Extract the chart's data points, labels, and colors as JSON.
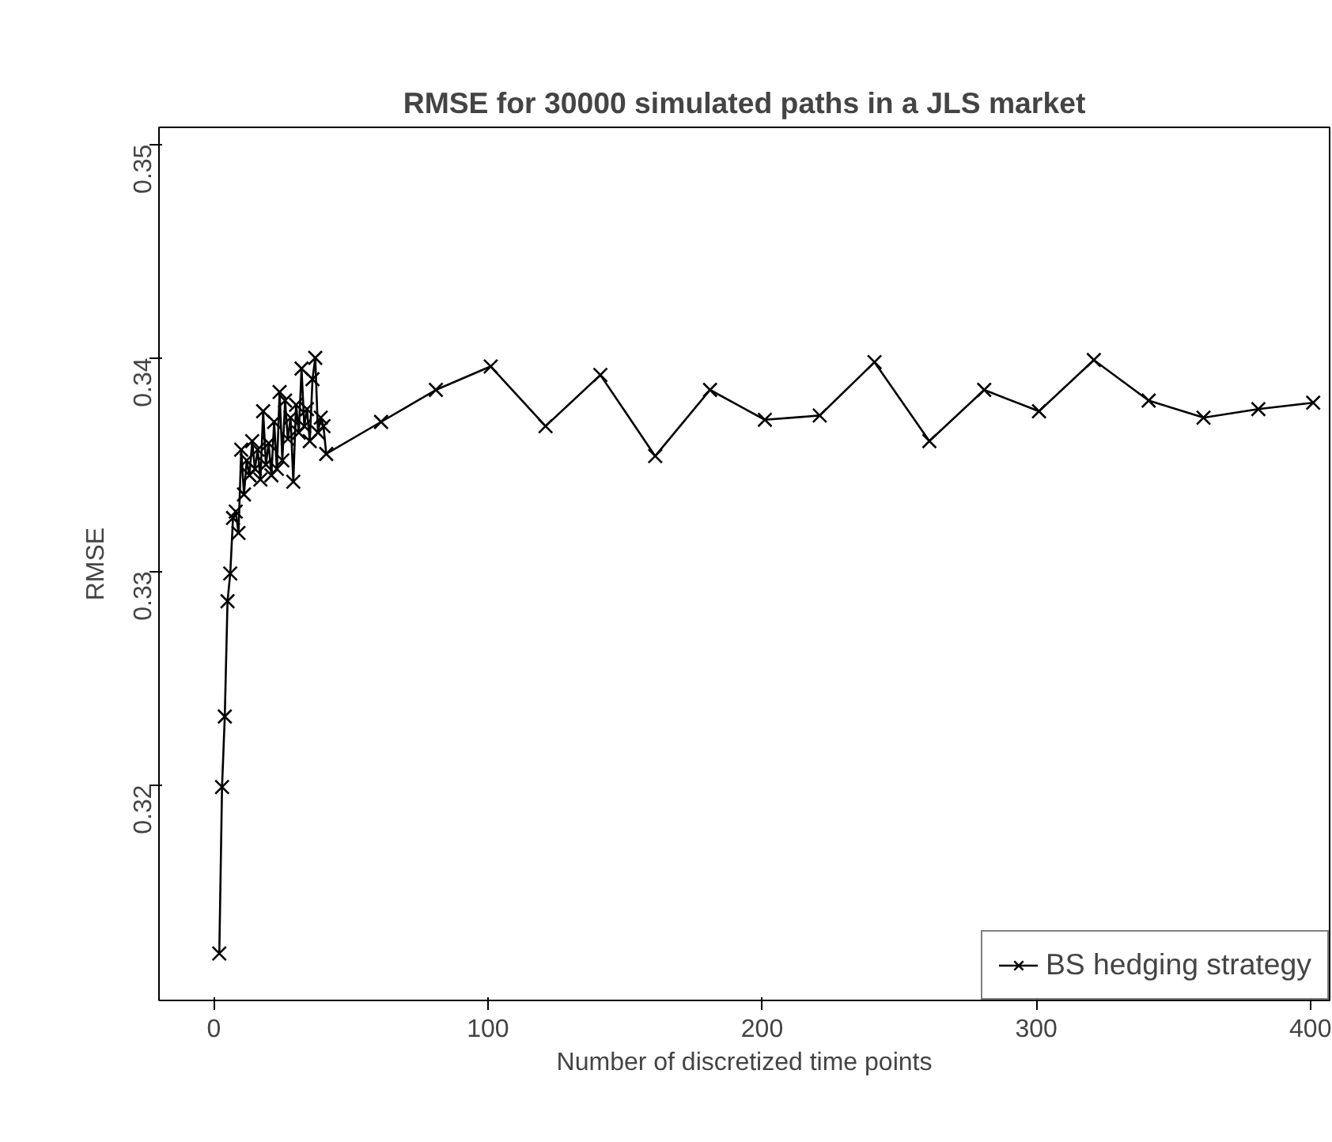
{
  "chart_data": {
    "type": "line",
    "title": "RMSE for 30000 simulated paths in a JLS market",
    "xlabel": "Number of discretized time points",
    "ylabel": "RMSE",
    "x": [
      2,
      3,
      4,
      5,
      6,
      7,
      8,
      9,
      10,
      11,
      12,
      13,
      14,
      15,
      16,
      17,
      18,
      19,
      20,
      21,
      22,
      23,
      24,
      25,
      26,
      27,
      28,
      29,
      30,
      31,
      32,
      33,
      34,
      35,
      36,
      37,
      38,
      39,
      40,
      41,
      61,
      81,
      101,
      121,
      141,
      161,
      181,
      201,
      221,
      241,
      261,
      281,
      301,
      321,
      341,
      361,
      381,
      401
    ],
    "series": [
      {
        "name": "BS hedging strategy",
        "color": "#000000",
        "values": [
          0.3121,
          0.3199,
          0.3232,
          0.3286,
          0.3299,
          0.3325,
          0.3328,
          0.3318,
          0.3357,
          0.3336,
          0.3352,
          0.3345,
          0.3361,
          0.3348,
          0.3357,
          0.3343,
          0.3375,
          0.335,
          0.336,
          0.3345,
          0.337,
          0.3348,
          0.3384,
          0.3352,
          0.338,
          0.3362,
          0.3372,
          0.3342,
          0.3378,
          0.3365,
          0.3395,
          0.3368,
          0.3376,
          0.3361,
          0.339,
          0.34,
          0.3365,
          0.3372,
          0.3368,
          0.3355,
          0.337,
          0.3385,
          0.3396,
          0.3368,
          0.3392,
          0.3354,
          0.3385,
          0.3371,
          0.3373,
          0.3398,
          0.3361,
          0.3385,
          0.3375,
          0.3399,
          0.338,
          0.3372,
          0.3376,
          0.3379
        ]
      }
    ],
    "xlim": [
      -20,
      407
    ],
    "ylim": [
      0.3099,
      0.3508
    ],
    "xticks": [
      0,
      100,
      200,
      300,
      400
    ],
    "yticks": [
      0.32,
      0.33,
      0.34,
      0.35
    ],
    "marker": "cross",
    "line_style": "solid",
    "legend": "bottom right",
    "grid": false
  }
}
